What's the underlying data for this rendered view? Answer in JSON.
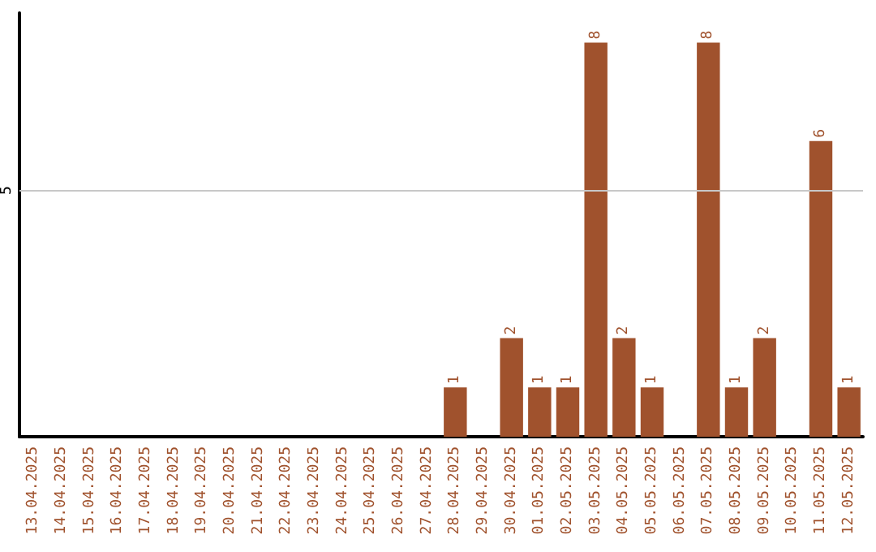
{
  "chart_data": {
    "type": "bar",
    "categories": [
      "13.04.2025",
      "14.04.2025",
      "15.04.2025",
      "16.04.2025",
      "17.04.2025",
      "18.04.2025",
      "19.04.2025",
      "20.04.2025",
      "21.04.2025",
      "22.04.2025",
      "23.04.2025",
      "24.04.2025",
      "25.04.2025",
      "26.04.2025",
      "27.04.2025",
      "28.04.2025",
      "29.04.2025",
      "30.04.2025",
      "01.05.2025",
      "02.05.2025",
      "03.05.2025",
      "04.05.2025",
      "05.05.2025",
      "06.05.2025",
      "07.05.2025",
      "08.05.2025",
      "09.05.2025",
      "10.05.2025",
      "11.05.2025",
      "12.05.2025"
    ],
    "values": [
      null,
      null,
      null,
      null,
      null,
      null,
      null,
      null,
      null,
      null,
      null,
      null,
      null,
      null,
      null,
      1,
      null,
      2,
      1,
      1,
      8,
      2,
      1,
      null,
      8,
      1,
      2,
      null,
      6,
      1
    ],
    "color": "#a0522d",
    "ylim": [
      0,
      8.6
    ],
    "yticks": [
      5
    ],
    "grid": "y",
    "data_labels": true
  }
}
